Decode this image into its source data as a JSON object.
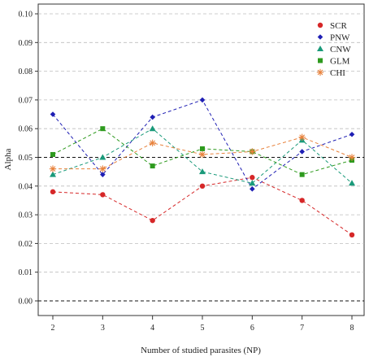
{
  "chart_data": {
    "type": "line",
    "title": "",
    "xlabel": "Number of studied parasites (NP)",
    "ylabel": "Alpha",
    "x": [
      2,
      3,
      4,
      5,
      6,
      7,
      8
    ],
    "xlim": [
      2,
      8
    ],
    "ylim": [
      0,
      0.1
    ],
    "xticks": [
      "2",
      "3",
      "4",
      "5",
      "6",
      "7",
      "8"
    ],
    "yticks": [
      "0.00",
      "0.01",
      "0.02",
      "0.03",
      "0.04",
      "0.05",
      "0.06",
      "0.07",
      "0.08",
      "0.09",
      "0.10"
    ],
    "grid": "horizontal dashed",
    "reference_lines": [
      0.05,
      0.0
    ],
    "legend_position": "top-right",
    "series": [
      {
        "name": "SCR",
        "color": "#d62728",
        "marker": "circle",
        "values": [
          0.038,
          0.037,
          0.028,
          0.04,
          0.043,
          0.035,
          0.023
        ]
      },
      {
        "name": "PNW",
        "color": "#1f1fb4",
        "marker": "diamond",
        "values": [
          0.065,
          0.044,
          0.064,
          0.07,
          0.039,
          0.052,
          0.058
        ]
      },
      {
        "name": "CNW",
        "color": "#1a9a7a",
        "marker": "triangle",
        "values": [
          0.044,
          0.05,
          0.06,
          0.045,
          0.041,
          0.056,
          0.041
        ]
      },
      {
        "name": "GLM",
        "color": "#2e9a1e",
        "marker": "square",
        "values": [
          0.051,
          0.06,
          0.047,
          0.053,
          0.052,
          0.044,
          0.049
        ]
      },
      {
        "name": "CHI",
        "color": "#e8823c",
        "marker": "asterisk",
        "values": [
          0.046,
          0.046,
          0.055,
          0.051,
          0.052,
          0.057,
          0.05
        ]
      }
    ]
  }
}
